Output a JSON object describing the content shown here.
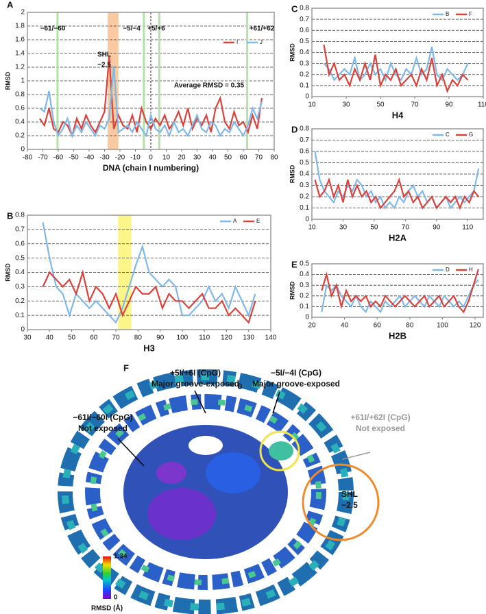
{
  "chart_data": [
    {
      "type": "line",
      "panel_label": "A",
      "ylabel": "RMSD",
      "xlabel": "DNA (chain I numbering)",
      "x": [
        -72,
        -69,
        -66,
        -63,
        -60,
        -57,
        -54,
        -51,
        -48,
        -45,
        -42,
        -39,
        -36,
        -33,
        -30,
        -27,
        -24,
        -21,
        -18,
        -15,
        -12,
        -9,
        -6,
        -3,
        0,
        3,
        6,
        9,
        12,
        15,
        18,
        21,
        24,
        27,
        30,
        33,
        36,
        39,
        42,
        45,
        48,
        51,
        54,
        57,
        60,
        63,
        66,
        69,
        72
      ],
      "series": [
        {
          "name": "I",
          "color": "#d9413a",
          "values": [
            0.45,
            0.35,
            0.6,
            0.3,
            0.25,
            0.4,
            0.35,
            0.2,
            0.45,
            0.3,
            0.5,
            0.35,
            0.25,
            0.4,
            0.55,
            1.35,
            0.3,
            0.5,
            0.35,
            0.3,
            0.5,
            0.25,
            0.6,
            0.4,
            0.3,
            0.45,
            0.35,
            0.5,
            0.3,
            0.4,
            0.55,
            0.35,
            0.6,
            0.3,
            0.45,
            0.35,
            0.5,
            0.25,
            0.6,
            0.75,
            0.4,
            0.3,
            0.55,
            0.35,
            0.4,
            0.25,
            0.5,
            0.3,
            0.75
          ]
        },
        {
          "name": "J",
          "color": "#7fb8e8",
          "values": [
            0.6,
            0.55,
            0.85,
            0.4,
            0.2,
            0.3,
            0.45,
            0.2,
            0.35,
            0.25,
            0.4,
            0.3,
            0.2,
            0.35,
            0.3,
            0.45,
            1.22,
            0.25,
            0.3,
            0.35,
            0.25,
            0.4,
            0.3,
            0.2,
            0.5,
            0.3,
            0.25,
            0.35,
            0.2,
            0.4,
            0.25,
            0.3,
            0.2,
            0.35,
            0.5,
            0.3,
            0.25,
            0.4,
            0.35,
            0.2,
            0.3,
            0.25,
            0.4,
            0.3,
            0.2,
            0.35,
            0.6,
            0.45,
            0.7
          ]
        }
      ],
      "xlim": [
        -80,
        80
      ],
      "xticks": [
        -80,
        -70,
        -60,
        -50,
        -40,
        -30,
        -20,
        -10,
        0,
        10,
        20,
        30,
        40,
        50,
        60,
        70,
        80
      ],
      "ylim": [
        0,
        2
      ],
      "yticks": [
        0,
        0.2,
        0.4,
        0.6,
        0.8,
        1,
        1.2,
        1.4,
        1.6,
        1.8,
        2
      ],
      "grid": true,
      "legend": "upper right",
      "highlight_lines": [
        -60.5,
        -4.5,
        5.5,
        62.5
      ],
      "highlight_line_color": "#b5e0a8",
      "highlight_span": [
        -28,
        -21
      ],
      "highlight_span_color": "#f9c9a0",
      "reference_line": 0,
      "annotations": [
        "−61/−60",
        "SHL",
        "−2.5",
        "−5/−4",
        "+5/+6",
        "+61/+62",
        "Average RMSD = 0.35"
      ]
    },
    {
      "type": "line",
      "panel_label": "B",
      "ylabel": "RMSD",
      "xlabel": "H3",
      "x": [
        37,
        40,
        43,
        46,
        49,
        52,
        55,
        58,
        61,
        64,
        67,
        70,
        73,
        76,
        79,
        82,
        85,
        88,
        91,
        94,
        97,
        100,
        103,
        106,
        109,
        112,
        115,
        118,
        121,
        124,
        127,
        130,
        133
      ],
      "series": [
        {
          "name": "A",
          "color": "#7fb8e8",
          "values": [
            0.75,
            0.5,
            0.3,
            0.25,
            0.1,
            0.25,
            0.2,
            0.15,
            0.2,
            0.15,
            0.1,
            0.05,
            0.15,
            0.3,
            0.45,
            0.58,
            0.4,
            0.35,
            0.3,
            0.35,
            0.3,
            0.1,
            0.1,
            0.15,
            0.2,
            0.3,
            0.2,
            0.25,
            0.15,
            0.3,
            0.2,
            0.1,
            0.25
          ]
        },
        {
          "name": "E",
          "color": "#d9413a",
          "values": [
            0.3,
            0.4,
            0.35,
            0.3,
            0.35,
            0.25,
            0.4,
            0.2,
            0.3,
            0.25,
            0.15,
            0.25,
            0.1,
            0.2,
            0.3,
            0.25,
            0.25,
            0.3,
            0.15,
            0.25,
            0.2,
            0.2,
            0.15,
            0.2,
            0.25,
            0.15,
            0.15,
            0.2,
            0.1,
            0.15,
            0.1,
            0.05,
            0.2
          ]
        }
      ],
      "xlim": [
        30,
        140
      ],
      "xticks": [
        30,
        40,
        50,
        60,
        70,
        80,
        90,
        100,
        110,
        120,
        130,
        140
      ],
      "ylim": [
        0,
        0.8
      ],
      "yticks": [
        0,
        0.1,
        0.2,
        0.3,
        0.4,
        0.5,
        0.6,
        0.7,
        0.8
      ],
      "grid": true,
      "legend": "upper right",
      "highlight_span": [
        71,
        77
      ],
      "highlight_span_color": "#fbf58a"
    },
    {
      "type": "line",
      "panel_label": "C",
      "ylabel": "RMSD",
      "xlabel": "H4",
      "x": [
        17,
        20,
        23,
        26,
        29,
        32,
        35,
        38,
        41,
        44,
        47,
        50,
        53,
        56,
        59,
        62,
        65,
        68,
        71,
        74,
        77,
        80,
        83,
        86,
        89,
        92,
        95,
        98,
        101
      ],
      "series": [
        {
          "name": "B",
          "color": "#7fb8e8",
          "values": [
            0.3,
            0.25,
            0.15,
            0.2,
            0.25,
            0.2,
            0.35,
            0.15,
            0.2,
            0.3,
            0.2,
            0.25,
            0.15,
            0.3,
            0.2,
            0.15,
            0.25,
            0.2,
            0.35,
            0.2,
            0.25,
            0.45,
            0.2,
            0.15,
            0.25,
            0.2,
            0.15,
            0.2,
            0.3
          ]
        },
        {
          "name": "F",
          "color": "#d9413a",
          "values": [
            0.47,
            0.2,
            0.3,
            0.15,
            0.2,
            0.1,
            0.25,
            0.15,
            0.3,
            0.15,
            0.38,
            0.1,
            0.2,
            0.15,
            0.25,
            0.1,
            0.15,
            0.2,
            0.1,
            0.25,
            0.15,
            0.35,
            0.1,
            0.2,
            0.05,
            0.15,
            0.1,
            0.2,
            0.15
          ]
        }
      ],
      "xlim": [
        10,
        110
      ],
      "xticks": [
        10,
        30,
        50,
        70,
        90,
        110
      ],
      "ylim": [
        0,
        0.8
      ],
      "yticks": [
        0,
        0.1,
        0.2,
        0.3,
        0.4,
        0.5,
        0.6,
        0.7,
        0.8
      ],
      "grid": true,
      "legend": "upper right"
    },
    {
      "type": "line",
      "panel_label": "D",
      "ylabel": "RMSD",
      "xlabel": "H2A",
      "x": [
        12,
        15,
        18,
        21,
        24,
        27,
        30,
        33,
        36,
        39,
        42,
        45,
        48,
        51,
        54,
        57,
        60,
        63,
        66,
        69,
        72,
        75,
        78,
        81,
        84,
        87,
        90,
        93,
        96,
        99,
        102,
        105,
        108,
        111,
        114,
        117
      ],
      "series": [
        {
          "name": "C",
          "color": "#7fb8e8",
          "values": [
            0.6,
            0.35,
            0.25,
            0.2,
            0.15,
            0.25,
            0.2,
            0.3,
            0.25,
            0.35,
            0.3,
            0.2,
            0.25,
            0.15,
            0.2,
            0.1,
            0.15,
            0.1,
            0.2,
            0.15,
            0.25,
            0.3,
            0.2,
            0.25,
            0.15,
            0.2,
            0.1,
            0.15,
            0.2,
            0.1,
            0.15,
            0.2,
            0.15,
            0.2,
            0.25,
            0.45
          ]
        },
        {
          "name": "G",
          "color": "#d9413a",
          "values": [
            0.35,
            0.2,
            0.25,
            0.35,
            0.2,
            0.3,
            0.15,
            0.35,
            0.2,
            0.3,
            0.2,
            0.25,
            0.15,
            0.2,
            0.1,
            0.15,
            0.2,
            0.25,
            0.35,
            0.2,
            0.25,
            0.15,
            0.2,
            0.1,
            0.15,
            0.2,
            0.1,
            0.15,
            0.2,
            0.15,
            0.2,
            0.1,
            0.2,
            0.15,
            0.25,
            0.2
          ]
        }
      ],
      "xlim": [
        10,
        120
      ],
      "xticks": [
        10,
        30,
        50,
        70,
        90,
        110
      ],
      "ylim": [
        0,
        0.8
      ],
      "yticks": [
        0,
        0.1,
        0.2,
        0.3,
        0.4,
        0.5,
        0.6,
        0.7,
        0.8
      ],
      "grid": true,
      "legend": "upper right"
    },
    {
      "type": "line",
      "panel_label": "E",
      "ylabel": "RMSD",
      "xlabel": "H2B",
      "x": [
        26,
        29,
        32,
        35,
        38,
        41,
        44,
        47,
        50,
        53,
        56,
        59,
        62,
        65,
        68,
        71,
        74,
        77,
        80,
        83,
        86,
        89,
        92,
        95,
        98,
        101,
        104,
        107,
        110,
        113,
        116,
        119,
        122
      ],
      "series": [
        {
          "name": "D",
          "color": "#7fb8e8",
          "values": [
            0.05,
            0.3,
            0.25,
            0.3,
            0.2,
            0.15,
            0.1,
            0.2,
            0.1,
            0.05,
            0.15,
            0.1,
            0.05,
            0.15,
            0.1,
            0.15,
            0.2,
            0.1,
            0.15,
            0.2,
            0.15,
            0.1,
            0.2,
            0.15,
            0.1,
            0.2,
            0.15,
            0.1,
            0.15,
            0.1,
            0.2,
            0.3,
            0.35
          ]
        },
        {
          "name": "H",
          "color": "#d9413a",
          "values": [
            0.25,
            0.4,
            0.2,
            0.3,
            0.1,
            0.25,
            0.15,
            0.2,
            0.15,
            0.2,
            0.1,
            0.15,
            0.1,
            0.2,
            0.15,
            0.1,
            0.15,
            0.2,
            0.15,
            0.1,
            0.15,
            0.2,
            0.1,
            0.15,
            0.2,
            0.1,
            0.15,
            0.2,
            0.1,
            0.05,
            0.15,
            0.3,
            0.45
          ]
        }
      ],
      "xlim": [
        20,
        125
      ],
      "xticks": [
        20,
        40,
        60,
        80,
        100,
        120
      ],
      "ylim": [
        0,
        0.5
      ],
      "yticks": [
        0,
        0.1,
        0.2,
        0.3,
        0.4,
        0.5
      ],
      "grid": true,
      "legend": "upper right"
    }
  ],
  "panel_f": {
    "label": "F",
    "annotations": [
      "+5I/+6I (CpG)",
      "Major groove-exposed",
      "−5I/−4I (CpG)",
      "Major groove-exposed",
      "0",
      "−61I/−60I (CpG)",
      "Not exposed",
      "+61I/+62I (CpG)",
      "Not exposed",
      "SHL",
      "−2.5"
    ],
    "colorbar": {
      "max": 1.34,
      "min": 0,
      "label": "RMSD (Å)"
    }
  }
}
